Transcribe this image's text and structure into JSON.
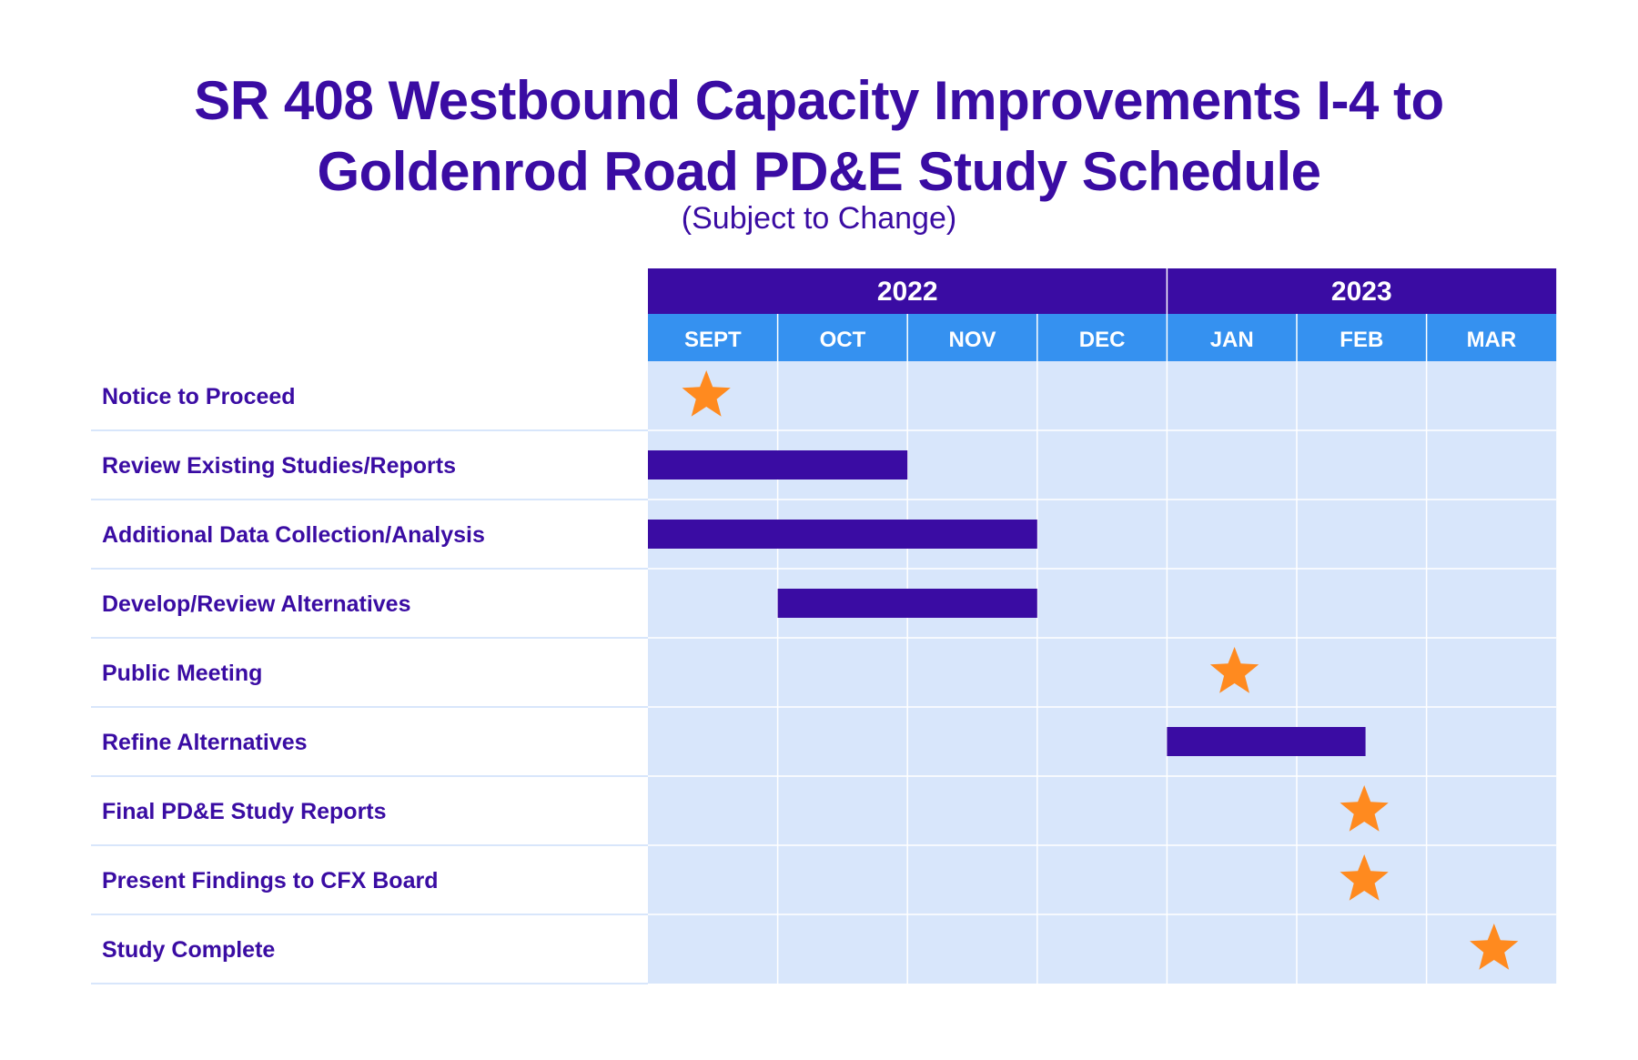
{
  "chart_data": {
    "type": "gantt",
    "title": "SR 408 Westbound Capacity Improvements I-4 to Goldenrod Road PD&E Study Schedule",
    "title_lines": [
      "SR 408 Westbound Capacity Improvements I-4 to",
      "Goldenrod Road PD&E Study Schedule"
    ],
    "subtitle": "(Subject to Change)",
    "years": [
      {
        "label": "2022",
        "start_month": 0,
        "span": 4
      },
      {
        "label": "2023",
        "start_month": 4,
        "span": 3
      }
    ],
    "months": [
      "SEPT",
      "OCT",
      "NOV",
      "DEC",
      "JAN",
      "FEB",
      "MAR"
    ],
    "tasks": [
      {
        "label": "Notice to Proceed",
        "type": "milestone",
        "at": 0.45
      },
      {
        "label": "Review Existing Studies/Reports",
        "type": "bar",
        "start": 0,
        "end": 2
      },
      {
        "label": "Additional Data Collection/Analysis",
        "type": "bar",
        "start": 0,
        "end": 3
      },
      {
        "label": "Develop/Review Alternatives",
        "type": "bar",
        "start": 1,
        "end": 3
      },
      {
        "label": "Public Meeting",
        "type": "milestone",
        "at": 4.52
      },
      {
        "label": "Refine Alternatives",
        "type": "bar",
        "start": 4,
        "end": 5.53
      },
      {
        "label": "Final PD&E Study Reports",
        "type": "milestone",
        "at": 5.52
      },
      {
        "label": "Present Findings to CFX Board",
        "type": "milestone",
        "at": 5.52
      },
      {
        "label": "Study Complete",
        "type": "milestone",
        "at": 6.52
      }
    ],
    "colors": {
      "title": "#3a0ca3",
      "year_header": "#3a0ca3",
      "month_header": "#3591f0",
      "grid_background": "#d8e6fb",
      "grid_lines": "#ffffff",
      "bar": "#3a0ca3",
      "milestone": "#ff8a1f",
      "task_label": "#3a0ca3",
      "row_divider": "#d8e6fb"
    }
  }
}
